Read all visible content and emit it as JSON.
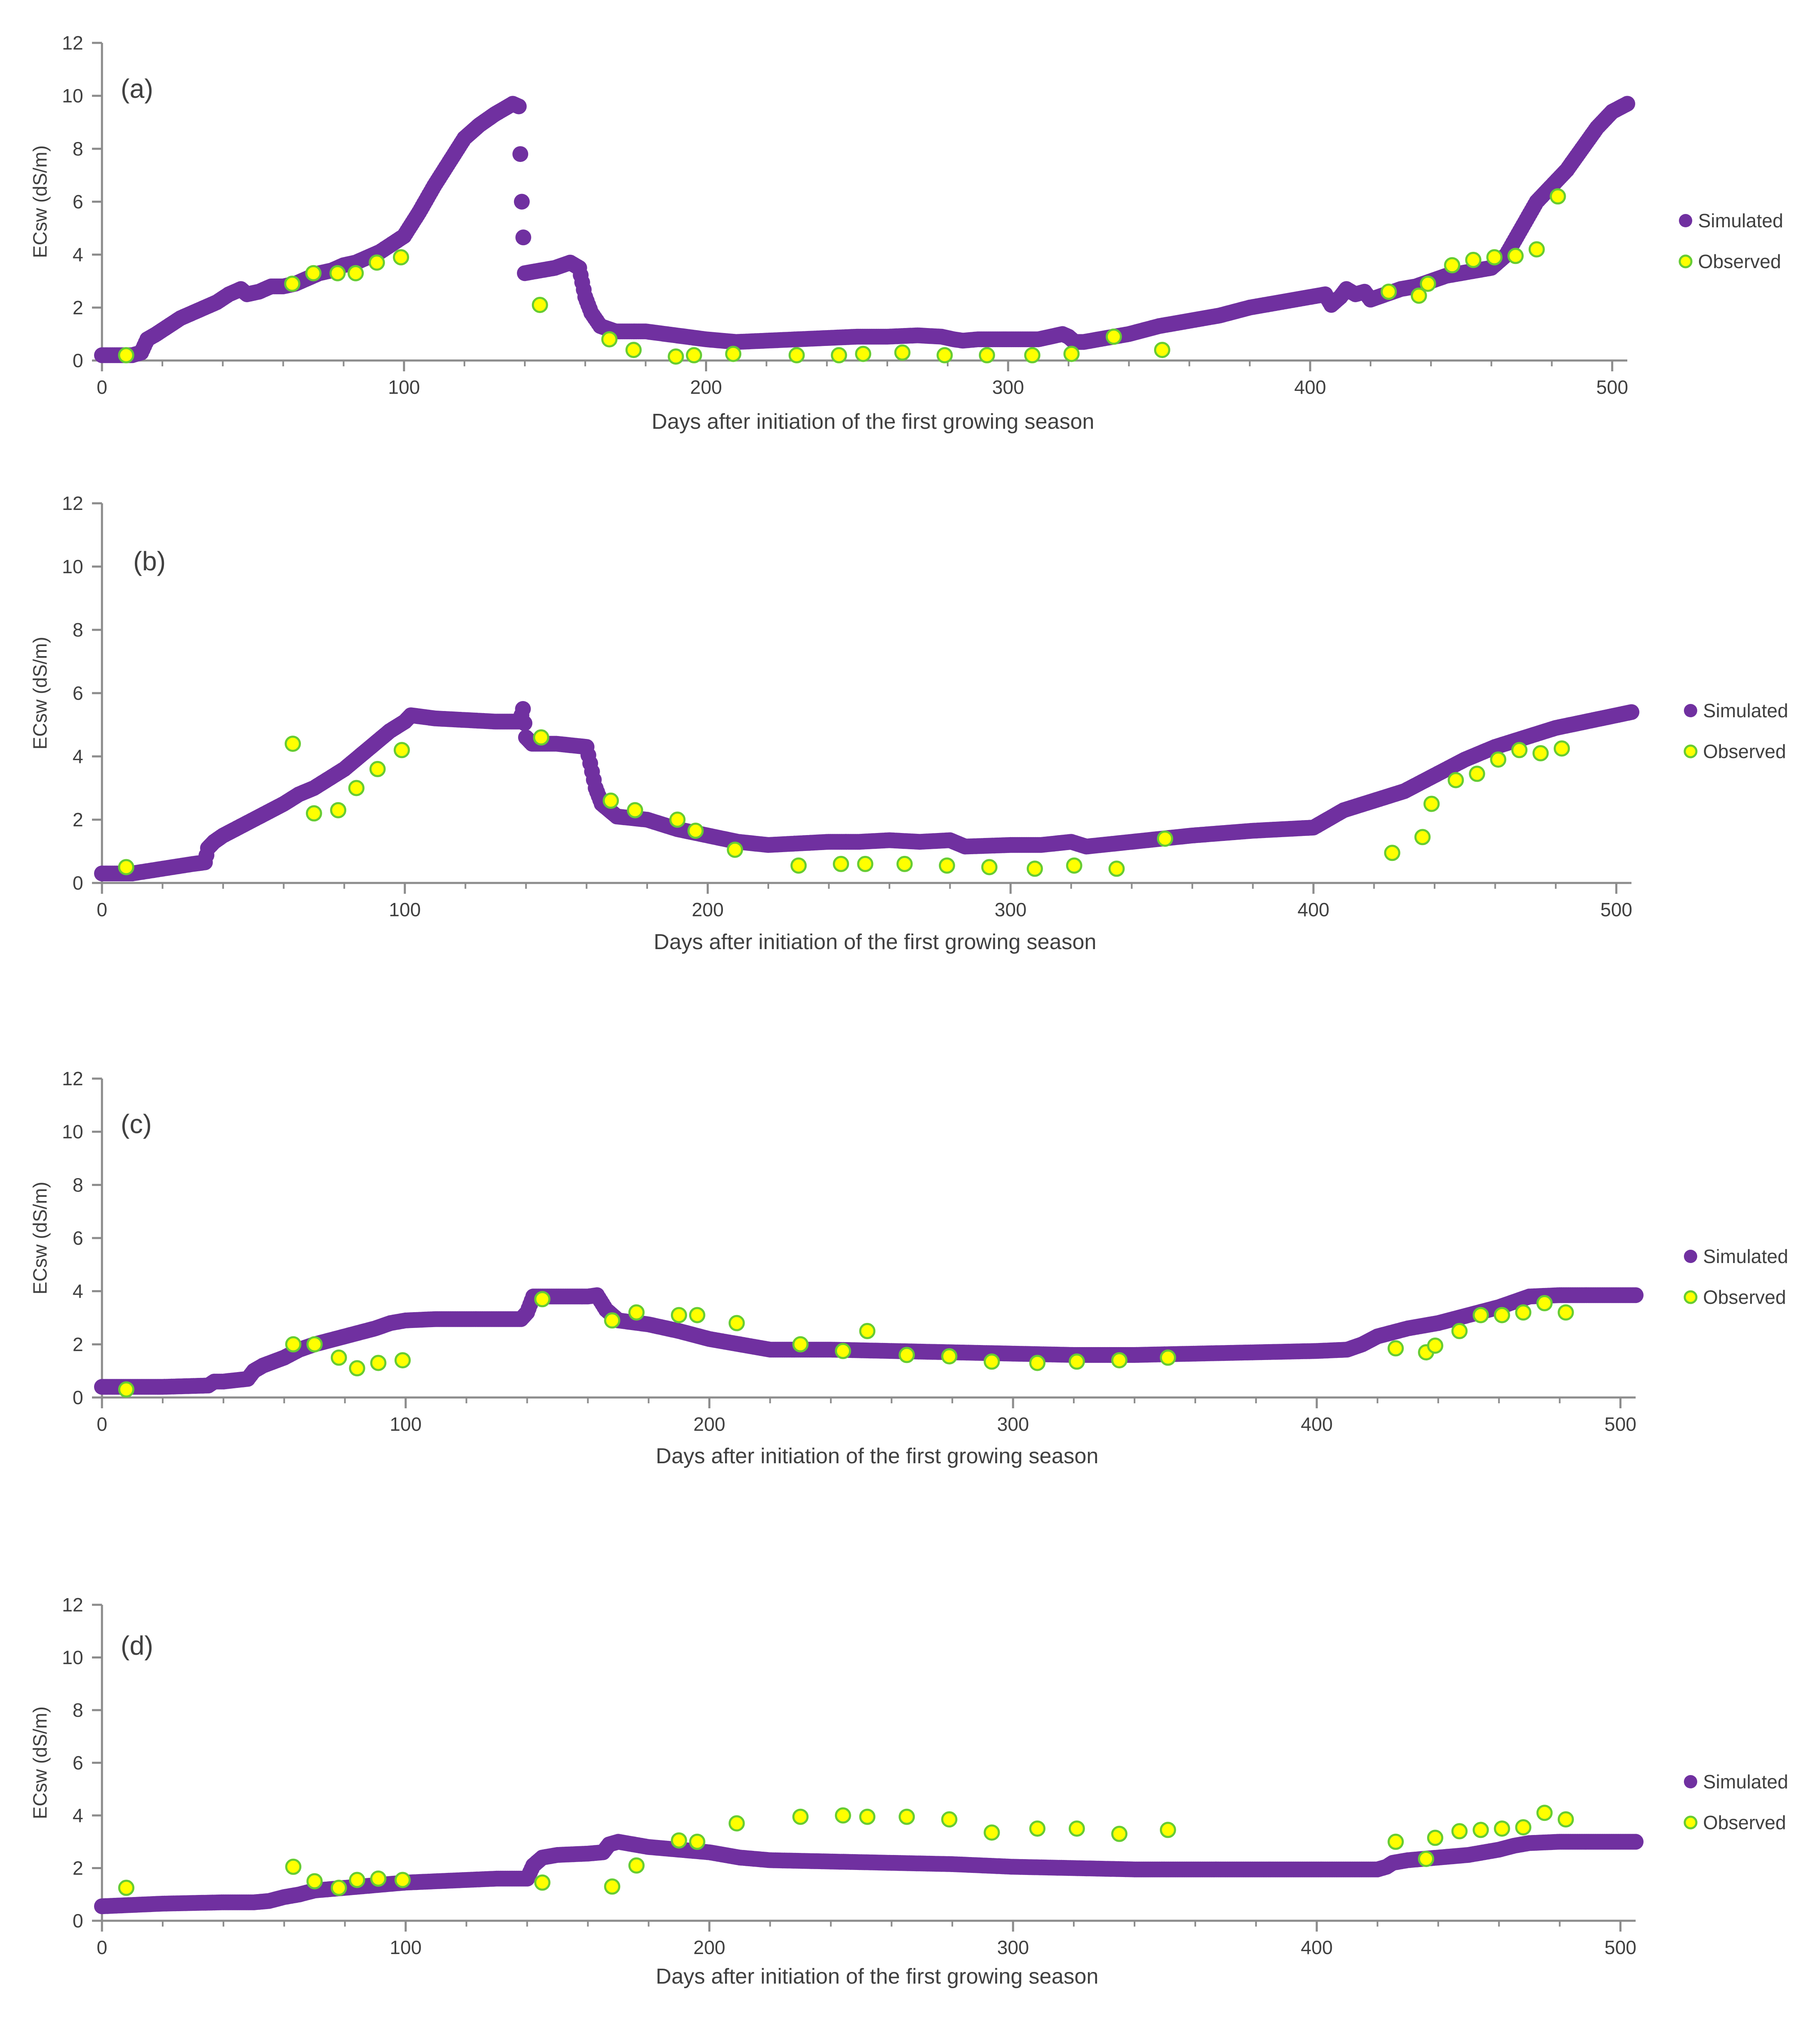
{
  "figure": {
    "panels": [
      "(a)",
      "(b)",
      "(c)",
      "(d)"
    ]
  },
  "colors": {
    "simulated": "#7030a0",
    "observed_fill": "#ffff00",
    "observed_stroke": "#66cc33",
    "axis": "#8c8c8c",
    "text": "#404040"
  },
  "chart_data": [
    {
      "type": "scatter",
      "panel_label": "(a)",
      "xlabel": "Days after initiation of the first growing season",
      "ylabel": "ECsw (dS/m)",
      "xlim": [
        0,
        505
      ],
      "ylim": [
        0,
        12
      ],
      "xticks": [
        0,
        100,
        200,
        300,
        400,
        500
      ],
      "yticks": [
        0,
        2,
        4,
        6,
        8,
        10,
        12
      ],
      "grid": false,
      "legend_position": "right",
      "series": [
        {
          "name": "Simulated",
          "style": "dense-markers",
          "x": [
            0,
            10,
            13,
            15,
            18,
            22,
            26,
            30,
            34,
            38,
            42,
            46,
            48,
            52,
            56,
            60,
            64,
            68,
            72,
            76,
            80,
            84,
            88,
            92,
            96,
            100,
            105,
            110,
            115,
            120,
            125,
            130,
            136,
            138,
            139,
            140,
            145,
            150,
            155,
            158,
            160,
            162,
            165,
            170,
            180,
            190,
            200,
            210,
            220,
            230,
            240,
            250,
            260,
            270,
            278,
            282,
            285,
            290,
            300,
            310,
            318,
            320,
            322,
            325,
            330,
            340,
            350,
            360,
            370,
            380,
            390,
            400,
            405,
            407,
            410,
            412,
            415,
            418,
            420,
            425,
            430,
            435,
            440,
            445,
            450,
            455,
            460,
            465,
            470,
            475,
            480,
            485,
            490,
            495,
            500,
            505
          ],
          "y": [
            0.2,
            0.2,
            0.3,
            0.8,
            1.0,
            1.3,
            1.6,
            1.8,
            2.0,
            2.2,
            2.5,
            2.7,
            2.5,
            2.6,
            2.8,
            2.8,
            2.9,
            3.1,
            3.3,
            3.4,
            3.6,
            3.7,
            3.9,
            4.1,
            4.4,
            4.7,
            5.6,
            6.6,
            7.5,
            8.4,
            8.9,
            9.3,
            9.7,
            9.6,
            6.0,
            3.3,
            3.4,
            3.5,
            3.7,
            3.5,
            2.4,
            1.8,
            1.3,
            1.1,
            1.1,
            0.95,
            0.8,
            0.7,
            0.75,
            0.8,
            0.85,
            0.9,
            0.9,
            0.95,
            0.9,
            0.8,
            0.75,
            0.8,
            0.8,
            0.8,
            1.0,
            0.9,
            0.7,
            0.7,
            0.8,
            1.0,
            1.3,
            1.5,
            1.7,
            2.0,
            2.2,
            2.4,
            2.5,
            2.1,
            2.4,
            2.7,
            2.5,
            2.6,
            2.3,
            2.5,
            2.7,
            2.8,
            3.0,
            3.2,
            3.3,
            3.4,
            3.5,
            4.0,
            5.0,
            6.0,
            6.6,
            7.2,
            8.0,
            8.8,
            9.4,
            9.7
          ]
        },
        {
          "name": "Observed",
          "style": "circle-markers",
          "x": [
            8,
            63,
            70,
            78,
            84,
            91,
            99,
            145,
            168,
            176,
            190,
            196,
            209,
            230,
            244,
            252,
            265,
            279,
            293,
            308,
            321,
            335,
            351,
            426,
            436,
            439,
            447,
            454,
            461,
            468,
            475,
            482
          ],
          "y": [
            0.2,
            2.9,
            3.3,
            3.3,
            3.3,
            3.7,
            3.9,
            2.1,
            0.8,
            0.4,
            0.15,
            0.2,
            0.25,
            0.2,
            0.2,
            0.25,
            0.3,
            0.2,
            0.2,
            0.2,
            0.25,
            0.9,
            0.4,
            2.6,
            2.45,
            2.9,
            3.6,
            3.8,
            3.9,
            3.95,
            4.2,
            6.2
          ]
        }
      ]
    },
    {
      "type": "scatter",
      "panel_label": "(b)",
      "xlabel": "Days after initiation of the first growing season",
      "ylabel": "ECsw (dS/m)",
      "xlim": [
        0,
        505
      ],
      "ylim": [
        0,
        12
      ],
      "xticks": [
        0,
        100,
        200,
        300,
        400,
        500
      ],
      "yticks": [
        0,
        2,
        4,
        6,
        8,
        10,
        12
      ],
      "grid": false,
      "legend_position": "right",
      "series": [
        {
          "name": "Simulated",
          "style": "dense-markers",
          "x": [
            0,
            10,
            20,
            30,
            34,
            35,
            37,
            40,
            50,
            60,
            65,
            70,
            80,
            90,
            95,
            100,
            102,
            110,
            120,
            130,
            138,
            139,
            140,
            142,
            150,
            160,
            163,
            165,
            170,
            180,
            190,
            200,
            210,
            220,
            230,
            240,
            250,
            260,
            270,
            280,
            285,
            300,
            310,
            320,
            325,
            330,
            340,
            360,
            380,
            400,
            410,
            420,
            430,
            440,
            450,
            460,
            470,
            480,
            490,
            500,
            505
          ],
          "y": [
            0.3,
            0.3,
            0.45,
            0.6,
            0.65,
            1.1,
            1.3,
            1.5,
            2.0,
            2.5,
            2.8,
            3.0,
            3.6,
            4.4,
            4.8,
            5.1,
            5.3,
            5.2,
            5.15,
            5.1,
            5.1,
            5.5,
            4.6,
            4.4,
            4.4,
            4.3,
            3.0,
            2.5,
            2.1,
            2.0,
            1.7,
            1.5,
            1.3,
            1.2,
            1.25,
            1.3,
            1.3,
            1.35,
            1.3,
            1.35,
            1.15,
            1.2,
            1.2,
            1.3,
            1.15,
            1.2,
            1.3,
            1.5,
            1.65,
            1.75,
            2.3,
            2.6,
            2.9,
            3.4,
            3.9,
            4.3,
            4.6,
            4.9,
            5.1,
            5.3,
            5.4
          ]
        },
        {
          "name": "Observed",
          "style": "circle-markers",
          "x": [
            8,
            63,
            70,
            78,
            84,
            91,
            99,
            145,
            168,
            176,
            190,
            196,
            209,
            230,
            244,
            252,
            265,
            279,
            293,
            308,
            321,
            335,
            351,
            426,
            436,
            439,
            447,
            454,
            461,
            468,
            475,
            482
          ],
          "y": [
            0.5,
            4.4,
            2.2,
            2.3,
            3.0,
            3.6,
            4.2,
            4.6,
            2.6,
            2.3,
            2.0,
            1.65,
            1.05,
            0.55,
            0.6,
            0.6,
            0.6,
            0.55,
            0.5,
            0.45,
            0.55,
            0.45,
            1.4,
            0.95,
            1.45,
            2.5,
            3.25,
            3.45,
            3.9,
            4.2,
            4.1,
            4.25
          ]
        }
      ]
    },
    {
      "type": "scatter",
      "panel_label": "(c)",
      "xlabel": "Days after initiation of the first growing season",
      "ylabel": "ECsw (dS/m)",
      "xlim": [
        0,
        505
      ],
      "ylim": [
        0,
        12
      ],
      "xticks": [
        0,
        100,
        200,
        300,
        400,
        500
      ],
      "yticks": [
        0,
        2,
        4,
        6,
        8,
        10,
        12
      ],
      "grid": false,
      "legend_position": "right",
      "series": [
        {
          "name": "Simulated",
          "style": "dense-markers",
          "x": [
            0,
            20,
            35,
            37,
            40,
            48,
            50,
            53,
            60,
            65,
            70,
            80,
            90,
            95,
            100,
            110,
            120,
            130,
            138,
            140,
            142,
            145,
            155,
            160,
            163,
            166,
            170,
            180,
            190,
            200,
            210,
            220,
            240,
            260,
            280,
            300,
            320,
            340,
            360,
            380,
            400,
            410,
            415,
            420,
            430,
            440,
            450,
            460,
            465,
            470,
            480,
            490,
            500,
            505
          ],
          "y": [
            0.4,
            0.4,
            0.45,
            0.6,
            0.6,
            0.7,
            1.0,
            1.2,
            1.5,
            1.8,
            2.0,
            2.3,
            2.6,
            2.8,
            2.9,
            2.95,
            2.95,
            2.95,
            2.95,
            3.2,
            3.8,
            3.8,
            3.8,
            3.8,
            3.85,
            3.3,
            2.9,
            2.75,
            2.5,
            2.2,
            2.0,
            1.8,
            1.8,
            1.75,
            1.7,
            1.65,
            1.6,
            1.6,
            1.65,
            1.7,
            1.75,
            1.8,
            2.0,
            2.3,
            2.6,
            2.8,
            3.1,
            3.4,
            3.6,
            3.8,
            3.85,
            3.85,
            3.85,
            3.85
          ]
        },
        {
          "name": "Observed",
          "style": "circle-markers",
          "x": [
            8,
            63,
            70,
            78,
            84,
            91,
            99,
            145,
            168,
            176,
            190,
            196,
            209,
            230,
            244,
            252,
            265,
            279,
            293,
            308,
            321,
            335,
            351,
            426,
            436,
            439,
            447,
            454,
            461,
            468,
            475,
            482
          ],
          "y": [
            0.3,
            2.0,
            2.0,
            1.5,
            1.1,
            1.3,
            1.4,
            3.7,
            2.9,
            3.2,
            3.1,
            3.1,
            2.8,
            2.0,
            1.75,
            2.5,
            1.6,
            1.55,
            1.35,
            1.3,
            1.35,
            1.4,
            1.5,
            1.85,
            1.7,
            1.95,
            2.5,
            3.1,
            3.1,
            3.2,
            3.55,
            3.2
          ]
        }
      ]
    },
    {
      "type": "scatter",
      "panel_label": "(d)",
      "xlabel": "Days after initiation of the first growing season",
      "ylabel": "ECsw (dS/m)",
      "xlim": [
        0,
        505
      ],
      "ylim": [
        0,
        12
      ],
      "xticks": [
        0,
        100,
        200,
        300,
        400,
        500
      ],
      "yticks": [
        0,
        2,
        4,
        6,
        8,
        10,
        12
      ],
      "grid": false,
      "legend_position": "right",
      "series": [
        {
          "name": "Simulated",
          "style": "dense-markers",
          "x": [
            0,
            10,
            20,
            40,
            50,
            55,
            60,
            65,
            70,
            80,
            90,
            100,
            110,
            120,
            130,
            140,
            142,
            145,
            150,
            160,
            165,
            167,
            170,
            180,
            190,
            200,
            210,
            220,
            240,
            260,
            280,
            300,
            320,
            340,
            360,
            380,
            400,
            420,
            423,
            425,
            430,
            440,
            450,
            460,
            465,
            470,
            480,
            490,
            500,
            505
          ],
          "y": [
            0.55,
            0.6,
            0.65,
            0.7,
            0.7,
            0.75,
            0.9,
            1.0,
            1.15,
            1.25,
            1.35,
            1.45,
            1.5,
            1.55,
            1.6,
            1.6,
            2.1,
            2.4,
            2.5,
            2.55,
            2.6,
            2.9,
            3.0,
            2.8,
            2.7,
            2.6,
            2.4,
            2.3,
            2.25,
            2.2,
            2.15,
            2.05,
            2.0,
            1.95,
            1.95,
            1.95,
            1.95,
            1.95,
            2.05,
            2.2,
            2.3,
            2.4,
            2.5,
            2.7,
            2.85,
            2.95,
            3.0,
            3.0,
            3.0,
            3.0
          ]
        },
        {
          "name": "Observed",
          "style": "circle-markers",
          "x": [
            8,
            63,
            70,
            78,
            84,
            91,
            99,
            145,
            168,
            176,
            190,
            196,
            209,
            230,
            244,
            252,
            265,
            279,
            293,
            308,
            321,
            335,
            351,
            426,
            436,
            439,
            447,
            454,
            461,
            468,
            475,
            482
          ],
          "y": [
            1.25,
            2.05,
            1.5,
            1.25,
            1.55,
            1.6,
            1.55,
            1.45,
            1.3,
            2.1,
            3.05,
            3.0,
            3.7,
            3.95,
            4.0,
            3.95,
            3.95,
            3.85,
            3.35,
            3.5,
            3.5,
            3.3,
            3.45,
            3.0,
            2.35,
            3.15,
            3.4,
            3.45,
            3.5,
            3.55,
            4.1,
            3.85
          ]
        }
      ]
    }
  ]
}
